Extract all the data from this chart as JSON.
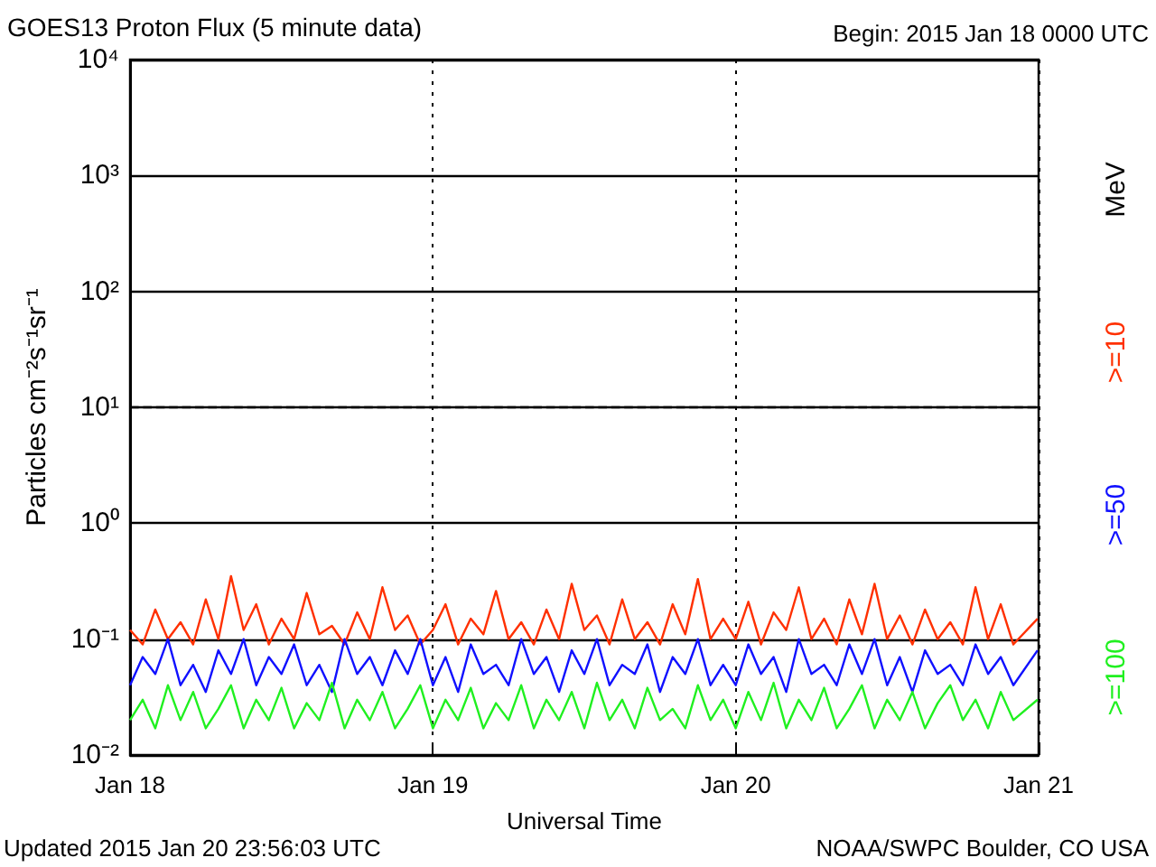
{
  "chart_data": {
    "type": "line",
    "title": "GOES13 Proton Flux (5 minute data)",
    "subtitle": "Begin: 2015 Jan 18 0000 UTC",
    "xlabel": "Universal Time",
    "ylabel": "Particles cm⁻²s⁻¹sr⁻¹",
    "legend_title": "MeV",
    "legend": "right",
    "log": "y",
    "grid": true,
    "marker": "none",
    "line_style": "solid",
    "annotations": [
      "Updated 2015 Jan 20 23:56:03 UTC",
      "NOAA/SWPC Boulder, CO USA"
    ],
    "xlim": [
      "2015-01-18T00:00",
      "2015-01-21T00:00"
    ],
    "xticks": [
      {
        "value": "2015-01-18T00:00",
        "label": "Jan 18"
      },
      {
        "value": "2015-01-19T00:00",
        "label": "Jan 19"
      },
      {
        "value": "2015-01-20T00:00",
        "label": "Jan 20"
      },
      {
        "value": "2015-01-21T00:00",
        "label": "Jan 21"
      }
    ],
    "ylim": [
      0.01,
      10000
    ],
    "yticks": [
      {
        "value": 0.01,
        "label": "10⁻²"
      },
      {
        "value": 0.1,
        "label": "10⁻¹"
      },
      {
        "value": 1,
        "label": "10⁰"
      },
      {
        "value": 10,
        "label": "10¹"
      },
      {
        "value": 100,
        "label": "10²"
      },
      {
        "value": 1000,
        "label": "10³"
      },
      {
        "value": 10000,
        "label": "10⁴"
      }
    ],
    "ref_lines": [
      {
        "axis": "y",
        "value": 10,
        "label": null,
        "color": "#000000",
        "line_style": "dashed"
      }
    ],
    "x": [
      "2015-01-18T00:00",
      "2015-01-18T01:00",
      "2015-01-18T02:00",
      "2015-01-18T03:00",
      "2015-01-18T04:00",
      "2015-01-18T05:00",
      "2015-01-18T06:00",
      "2015-01-18T07:00",
      "2015-01-18T08:00",
      "2015-01-18T09:00",
      "2015-01-18T10:00",
      "2015-01-18T11:00",
      "2015-01-18T12:00",
      "2015-01-18T13:00",
      "2015-01-18T14:00",
      "2015-01-18T15:00",
      "2015-01-18T16:00",
      "2015-01-18T17:00",
      "2015-01-18T18:00",
      "2015-01-18T19:00",
      "2015-01-18T20:00",
      "2015-01-18T21:00",
      "2015-01-18T22:00",
      "2015-01-18T23:00",
      "2015-01-19T00:00",
      "2015-01-19T01:00",
      "2015-01-19T02:00",
      "2015-01-19T03:00",
      "2015-01-19T04:00",
      "2015-01-19T05:00",
      "2015-01-19T06:00",
      "2015-01-19T07:00",
      "2015-01-19T08:00",
      "2015-01-19T09:00",
      "2015-01-19T10:00",
      "2015-01-19T11:00",
      "2015-01-19T12:00",
      "2015-01-19T13:00",
      "2015-01-19T14:00",
      "2015-01-19T15:00",
      "2015-01-19T16:00",
      "2015-01-19T17:00",
      "2015-01-19T18:00",
      "2015-01-19T19:00",
      "2015-01-19T20:00",
      "2015-01-19T21:00",
      "2015-01-19T22:00",
      "2015-01-19T23:00",
      "2015-01-20T00:00",
      "2015-01-20T01:00",
      "2015-01-20T02:00",
      "2015-01-20T03:00",
      "2015-01-20T04:00",
      "2015-01-20T05:00",
      "2015-01-20T06:00",
      "2015-01-20T07:00",
      "2015-01-20T08:00",
      "2015-01-20T09:00",
      "2015-01-20T10:00",
      "2015-01-20T11:00",
      "2015-01-20T12:00",
      "2015-01-20T13:00",
      "2015-01-20T14:00",
      "2015-01-20T15:00",
      "2015-01-20T16:00",
      "2015-01-20T17:00",
      "2015-01-20T18:00",
      "2015-01-20T19:00",
      "2015-01-20T20:00",
      "2015-01-20T21:00",
      "2015-01-20T22:00",
      "2015-01-20T23:55"
    ],
    "series": [
      {
        "name": ">=10",
        "color": "#ff3000",
        "values": [
          0.12,
          0.09,
          0.18,
          0.1,
          0.14,
          0.09,
          0.22,
          0.1,
          0.35,
          0.12,
          0.2,
          0.09,
          0.15,
          0.1,
          0.25,
          0.11,
          0.13,
          0.09,
          0.17,
          0.1,
          0.28,
          0.12,
          0.16,
          0.09,
          0.12,
          0.2,
          0.09,
          0.15,
          0.11,
          0.26,
          0.1,
          0.14,
          0.09,
          0.18,
          0.1,
          0.3,
          0.12,
          0.16,
          0.09,
          0.22,
          0.1,
          0.14,
          0.09,
          0.2,
          0.11,
          0.33,
          0.1,
          0.15,
          0.1,
          0.21,
          0.09,
          0.17,
          0.12,
          0.28,
          0.1,
          0.15,
          0.09,
          0.22,
          0.11,
          0.3,
          0.1,
          0.16,
          0.09,
          0.18,
          0.1,
          0.14,
          0.09,
          0.28,
          0.1,
          0.2,
          0.09,
          0.15
        ]
      },
      {
        "name": ">=50",
        "color": "#1010ff",
        "values": [
          0.04,
          0.07,
          0.05,
          0.1,
          0.04,
          0.06,
          0.035,
          0.08,
          0.05,
          0.1,
          0.04,
          0.07,
          0.05,
          0.09,
          0.04,
          0.06,
          0.035,
          0.1,
          0.05,
          0.07,
          0.04,
          0.08,
          0.05,
          0.1,
          0.04,
          0.07,
          0.035,
          0.09,
          0.05,
          0.06,
          0.04,
          0.1,
          0.05,
          0.07,
          0.035,
          0.08,
          0.05,
          0.1,
          0.04,
          0.06,
          0.05,
          0.09,
          0.035,
          0.07,
          0.05,
          0.1,
          0.04,
          0.06,
          0.04,
          0.09,
          0.05,
          0.07,
          0.035,
          0.1,
          0.05,
          0.06,
          0.04,
          0.09,
          0.05,
          0.1,
          0.04,
          0.07,
          0.035,
          0.08,
          0.05,
          0.06,
          0.04,
          0.09,
          0.05,
          0.07,
          0.04,
          0.08
        ]
      },
      {
        "name": ">=100",
        "color": "#20f020",
        "values": [
          0.02,
          0.03,
          0.017,
          0.04,
          0.02,
          0.035,
          0.017,
          0.025,
          0.04,
          0.017,
          0.03,
          0.02,
          0.038,
          0.017,
          0.028,
          0.02,
          0.042,
          0.017,
          0.03,
          0.02,
          0.035,
          0.017,
          0.025,
          0.04,
          0.017,
          0.03,
          0.02,
          0.038,
          0.017,
          0.028,
          0.02,
          0.04,
          0.017,
          0.03,
          0.02,
          0.035,
          0.017,
          0.042,
          0.02,
          0.03,
          0.017,
          0.038,
          0.02,
          0.025,
          0.017,
          0.04,
          0.02,
          0.03,
          0.017,
          0.035,
          0.02,
          0.042,
          0.017,
          0.03,
          0.02,
          0.038,
          0.017,
          0.025,
          0.04,
          0.017,
          0.03,
          0.02,
          0.035,
          0.017,
          0.028,
          0.04,
          0.02,
          0.03,
          0.017,
          0.035,
          0.02,
          0.03
        ]
      }
    ]
  }
}
